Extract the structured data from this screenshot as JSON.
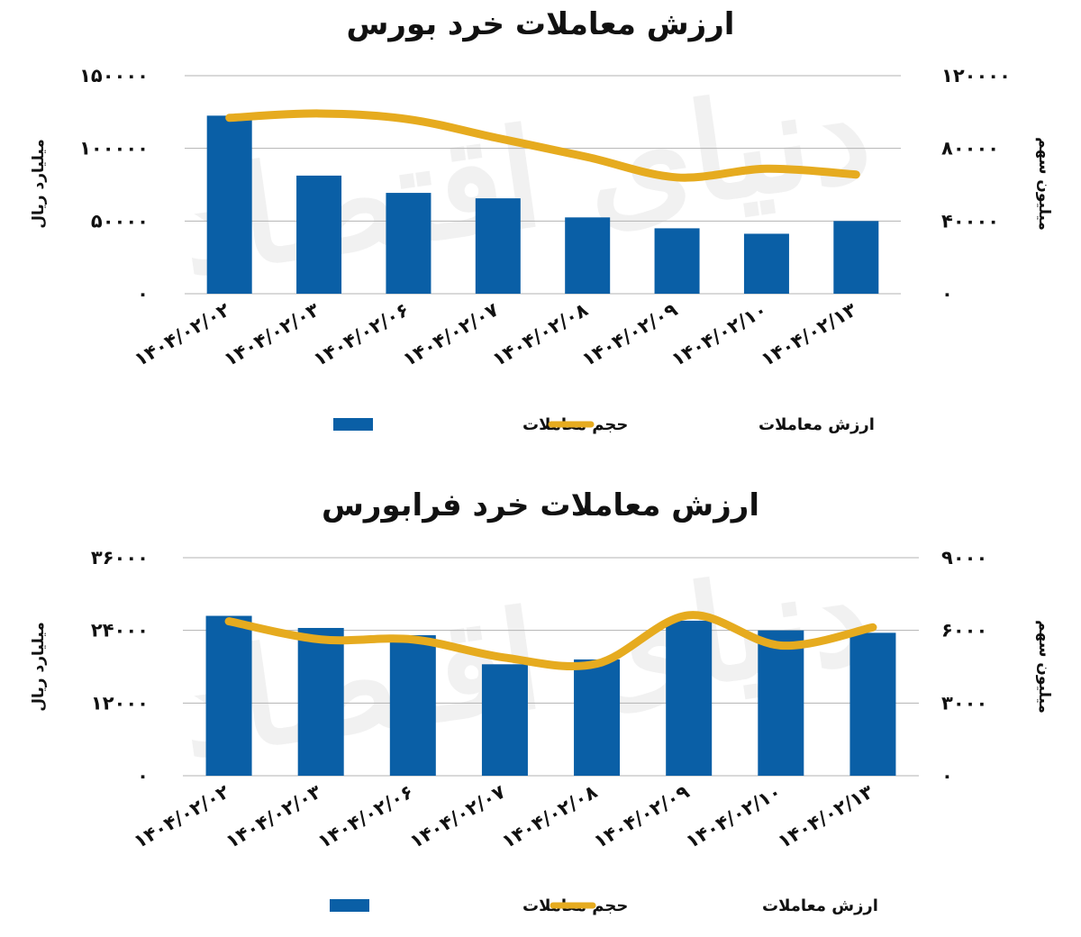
{
  "chart_data": [
    {
      "type": "bar",
      "title": "ارزش معاملات خرد بورس",
      "categories": [
        "۱۴۰۴/۰۲/۰۲",
        "۱۴۰۴/۰۲/۰۳",
        "۱۴۰۴/۰۲/۰۶",
        "۱۴۰۴/۰۲/۰۷",
        "۱۴۰۴/۰۲/۰۸",
        "۱۴۰۴/۰۲/۰۹",
        "۱۴۰۴/۰۲/۱۰",
        "۱۴۰۴/۰۲/۱۳"
      ],
      "ylabel": "میلیارد ریال",
      "y2label": "میلیون سهم",
      "ylim": [
        0,
        150000
      ],
      "y2lim": [
        0,
        120000
      ],
      "yticks": [
        "۰",
        "۵۰۰۰۰",
        "۱۰۰۰۰۰",
        "۱۵۰۰۰۰"
      ],
      "y2ticks": [
        "۰",
        "۴۰۰۰۰",
        "۸۰۰۰۰",
        "۱۲۰۰۰۰"
      ],
      "grid": true,
      "legend_position": "bottom",
      "series": [
        {
          "name": "حجم معاملات",
          "type": "bar",
          "axis": "right",
          "color": "#0a5fa6",
          "values": [
            98000,
            65000,
            55500,
            52500,
            42000,
            36000,
            33000,
            40000
          ]
        },
        {
          "name": "ارزش معاملات",
          "type": "line",
          "axis": "left",
          "color": "#e6ab1f",
          "values": [
            121000,
            124000,
            120000,
            107000,
            94000,
            80000,
            86000,
            82000
          ]
        }
      ]
    },
    {
      "type": "bar",
      "title": "ارزش معاملات خرد فرابورس",
      "categories": [
        "۱۴۰۴/۰۲/۰۲",
        "۱۴۰۴/۰۲/۰۳",
        "۱۴۰۴/۰۲/۰۶",
        "۱۴۰۴/۰۲/۰۷",
        "۱۴۰۴/۰۲/۰۸",
        "۱۴۰۴/۰۲/۰۹",
        "۱۴۰۴/۰۲/۱۰",
        "۱۴۰۴/۰۲/۱۳"
      ],
      "ylabel": "میلیارد ریال",
      "y2label": "میلیون سهم",
      "ylim": [
        0,
        36000
      ],
      "y2lim": [
        0,
        9000
      ],
      "yticks": [
        "۰",
        "۱۲۰۰۰",
        "۲۴۰۰۰",
        "۳۶۰۰۰"
      ],
      "y2ticks": [
        "۰",
        "۳۰۰۰",
        "۶۰۰۰",
        "۹۰۰۰"
      ],
      "grid": true,
      "legend_position": "bottom",
      "series": [
        {
          "name": "حجم معاملات",
          "type": "bar",
          "axis": "right",
          "color": "#0a5fa6",
          "values": [
            6600,
            6100,
            5800,
            4600,
            4800,
            6400,
            6000,
            5900
          ]
        },
        {
          "name": "ارزش معاملات",
          "type": "line",
          "axis": "left",
          "color": "#e6ab1f",
          "values": [
            25500,
            22500,
            22500,
            19500,
            18500,
            26500,
            21500,
            24500
          ]
        }
      ]
    }
  ],
  "watermark": "دنیای اقتصاد"
}
